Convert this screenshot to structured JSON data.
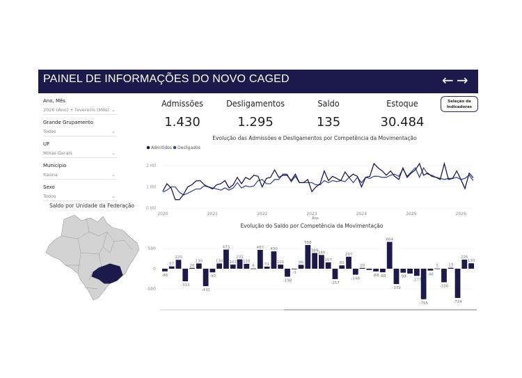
{
  "header": {
    "title": "PAINEL DE INFORMAÇÕES DO NOVO CAGED",
    "back_icon": "arrow-left-icon",
    "forward_icon": "arrow-right-icon"
  },
  "filters": [
    {
      "label": "Ano, Mês",
      "value": "2026 (Ano) + fevereiro (Mês)"
    },
    {
      "label": "Grande Grupamento",
      "value": "Todos"
    },
    {
      "label": "UF",
      "value": "Minas Gerais"
    },
    {
      "label": "Município",
      "value": "Itaúna"
    },
    {
      "label": "Sexo",
      "value": "Todos"
    }
  ],
  "map": {
    "title": "Saldo por Unidade da Federação",
    "highlight_color": "#1b1a4b",
    "base_color": "#d3d3d3"
  },
  "kpis": [
    {
      "label": "Admissões",
      "value": "1.430"
    },
    {
      "label": "Desligamentos",
      "value": "1.295"
    },
    {
      "label": "Saldo",
      "value": "135"
    },
    {
      "label": "Estoque",
      "value": "30.484"
    }
  ],
  "indicator_button": {
    "line1": "Seleção de",
    "line2": "Indicadores"
  },
  "chart_data": [
    {
      "type": "line",
      "title": "Evolução das Admissões e Desligamentos por Competência da Movimentação",
      "xlabel": "Ano",
      "ylabel": "",
      "ylim": [
        0,
        2.3
      ],
      "yticks": [
        {
          "v": 0,
          "label": "0 Mil"
        },
        {
          "v": 1,
          "label": "1 Mil"
        },
        {
          "v": 2,
          "label": "2 Mil"
        }
      ],
      "xticks": [
        "2020",
        "2021",
        "2022",
        "2023",
        "2024",
        "2025",
        "2026"
      ],
      "x_start": "2020-01",
      "x_end": "2026-02",
      "series": [
        {
          "name": "Admitidos",
          "color": "#1b1a4b",
          "values": [
            0.8,
            1.15,
            0.95,
            0.4,
            0.4,
            0.65,
            1.0,
            1.1,
            1.28,
            1.3,
            1.1,
            1.0,
            0.9,
            1.1,
            1.15,
            1.3,
            0.95,
            1.1,
            1.45,
            1.15,
            1.45,
            1.35,
            1.55,
            1.5,
            1.0,
            1.4,
            1.45,
            1.8,
            1.45,
            1.55,
            1.55,
            1.3,
            1.6,
            1.2,
            1.2,
            1.35,
            0.78,
            1.0,
            1.15,
            1.75,
            1.3,
            1.5,
            1.4,
            1.3,
            1.7,
            1.45,
            1.6,
            1.5,
            1.0,
            1.45,
            1.5,
            2.1,
            1.9,
            1.75,
            1.55,
            1.75,
            1.5,
            1.35,
            1.9,
            1.45,
            1.65,
            1.8,
            2.1,
            1.55,
            1.65,
            1.5,
            1.45,
            1.35,
            2.1,
            1.35,
            1.4,
            1.75,
            1.35,
            0.92,
            1.65,
            1.43
          ]
        },
        {
          "name": "Desligados",
          "color": "#3b4a9a",
          "values": [
            0.75,
            0.85,
            1.0,
            1.0,
            0.75,
            0.62,
            0.7,
            0.8,
            0.9,
            0.9,
            1.05,
            1.0,
            0.95,
            0.9,
            0.85,
            0.95,
            0.85,
            0.95,
            1.2,
            0.95,
            1.05,
            1.0,
            1.05,
            1.3,
            1.35,
            1.15,
            1.15,
            1.35,
            1.35,
            1.6,
            1.6,
            1.25,
            1.5,
            1.2,
            1.2,
            1.2,
            1.2,
            1.1,
            1.1,
            1.3,
            1.2,
            1.3,
            1.25,
            1.3,
            1.25,
            1.45,
            1.2,
            1.45,
            1.2,
            1.45,
            1.4,
            1.5,
            1.5,
            1.45,
            1.45,
            1.55,
            1.6,
            1.5,
            1.85,
            1.5,
            1.7,
            1.9,
            1.45,
            1.9,
            1.6,
            1.55,
            1.45,
            1.4,
            1.35,
            1.4,
            1.4,
            1.45,
            1.35,
            1.4,
            1.55,
            1.295
          ]
        }
      ],
      "legend": "top-left"
    },
    {
      "type": "bar",
      "title": "Evolução do Saldo por Competência da Movimentação",
      "ylim": [
        -900,
        750
      ],
      "yticks": [
        500,
        0,
        -500
      ],
      "color": "#1b1a4b",
      "values": [
        -66,
        57,
        220,
        -313,
        20,
        130,
        -432,
        -90,
        130,
        473,
        102,
        231,
        120,
        6,
        467,
        51,
        430,
        101,
        -198,
        -3,
        96,
        588,
        389,
        340,
        157,
        -257,
        82,
        297,
        -148,
        20,
        -30,
        -68,
        -88,
        664,
        -379,
        -98,
        -120,
        -177,
        -755,
        -46,
        5,
        -336,
        23,
        -724,
        225,
        135
      ],
      "labels": [
        "-66",
        "57",
        "220",
        "-313",
        "20",
        "130",
        "-432",
        "-90",
        "130",
        "473",
        "102",
        "231",
        "120",
        "6",
        "467",
        "51",
        "430",
        "101",
        "-198",
        "-3",
        "96",
        "588",
        "389",
        "340",
        "157",
        "-257",
        "82",
        "297",
        "-148",
        "20",
        "",
        "-68",
        "-88",
        "664",
        "-379",
        "-98",
        "",
        "-177",
        "-755",
        "-46",
        "5",
        "-336",
        "23",
        "-724",
        "225",
        "135"
      ]
    }
  ]
}
